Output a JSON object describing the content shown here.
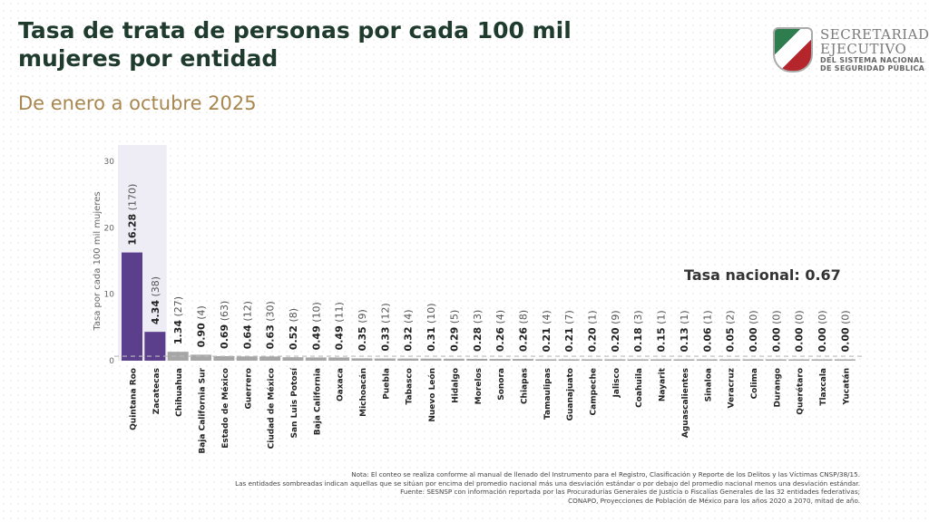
{
  "header": {
    "title": "Tasa de trata de personas por cada 100 mil mujeres por entidad",
    "subtitle": "De enero a octubre 2025"
  },
  "logo": {
    "line1": "SECRETARIADO",
    "line2": "EJECUTIVO",
    "line3": "DEL SISTEMA NACIONAL",
    "line4": "DE SEGURIDAD PÚBLICA"
  },
  "colors": {
    "highlight": "#5b3f8c",
    "normal": "#a6a6a6",
    "band": "#eeedf6"
  },
  "chart_data": {
    "type": "bar",
    "ylabel": "Tasa por cada 100 mil mujeres",
    "ylim": [
      0,
      30
    ],
    "yticks": [
      "0",
      "10",
      "20",
      "30"
    ],
    "national_rate_label": "Tasa nacional: 0.67",
    "national_rate": 0.67,
    "categories": [
      "Quintana Roo",
      "Zacatecas",
      "Chihuahua",
      "Baja California Sur",
      "Estado de México",
      "Guerrero",
      "Ciudad de México",
      "San Luis Potosí",
      "Baja California",
      "Oaxaca",
      "Michoacán",
      "Puebla",
      "Tabasco",
      "Nuevo León",
      "Hidalgo",
      "Morelos",
      "Sonora",
      "Chiapas",
      "Tamaulipas",
      "Guanajuato",
      "Campeche",
      "Jalisco",
      "Coahuila",
      "Nayarit",
      "Aguascalientes",
      "Sinaloa",
      "Veracruz",
      "Colima",
      "Durango",
      "Querétaro",
      "Tlaxcala",
      "Yucatán"
    ],
    "values": [
      16.28,
      4.34,
      1.34,
      0.9,
      0.69,
      0.64,
      0.63,
      0.52,
      0.49,
      0.49,
      0.35,
      0.33,
      0.32,
      0.31,
      0.29,
      0.28,
      0.26,
      0.26,
      0.21,
      0.21,
      0.2,
      0.2,
      0.18,
      0.15,
      0.13,
      0.06,
      0.05,
      0.0,
      0.0,
      0.0,
      0.0,
      0.0
    ],
    "value_labels": [
      "16.28",
      "4.34",
      "1.34",
      "0.90",
      "0.69",
      "0.64",
      "0.63",
      "0.52",
      "0.49",
      "0.49",
      "0.35",
      "0.33",
      "0.32",
      "0.31",
      "0.29",
      "0.28",
      "0.26",
      "0.26",
      "0.21",
      "0.21",
      "0.20",
      "0.20",
      "0.18",
      "0.15",
      "0.13",
      "0.06",
      "0.05",
      "0.00",
      "0.00",
      "0.00",
      "0.00",
      "0.00"
    ],
    "counts": [
      "(170)",
      "(38)",
      "(27)",
      "(4)",
      "(63)",
      "(12)",
      "(30)",
      "(8)",
      "(10)",
      "(11)",
      "(9)",
      "(12)",
      "(4)",
      "(10)",
      "(5)",
      "(3)",
      "(4)",
      "(8)",
      "(4)",
      "(7)",
      "(1)",
      "(9)",
      "(3)",
      "(1)",
      "(1)",
      "(1)",
      "(2)",
      "(0)",
      "(0)",
      "(0)",
      "(0)",
      "(0)"
    ],
    "highlighted": [
      "Quintana Roo",
      "Zacatecas"
    ]
  },
  "notes": [
    "Nota: El conteo se realiza conforme al manual de llenado del Instrumento para el Registro, Clasificación y Reporte de los Delitos y las Víctimas CNSP/38/15.",
    "Las entidades sombreadas indican aquellas que se sitúan por encima del promedio nacional más una desviación estándar o por debajo del promedio nacional menos una desviación estándar.",
    "Fuente: SESNSP con información reportada por las Procuradurías Generales de Justicia o Fiscalías Generales de las 32 entidades federativas;",
    "CONAPO, Proyecciones de Población de México para los años 2020 a 2070, mitad de año."
  ]
}
